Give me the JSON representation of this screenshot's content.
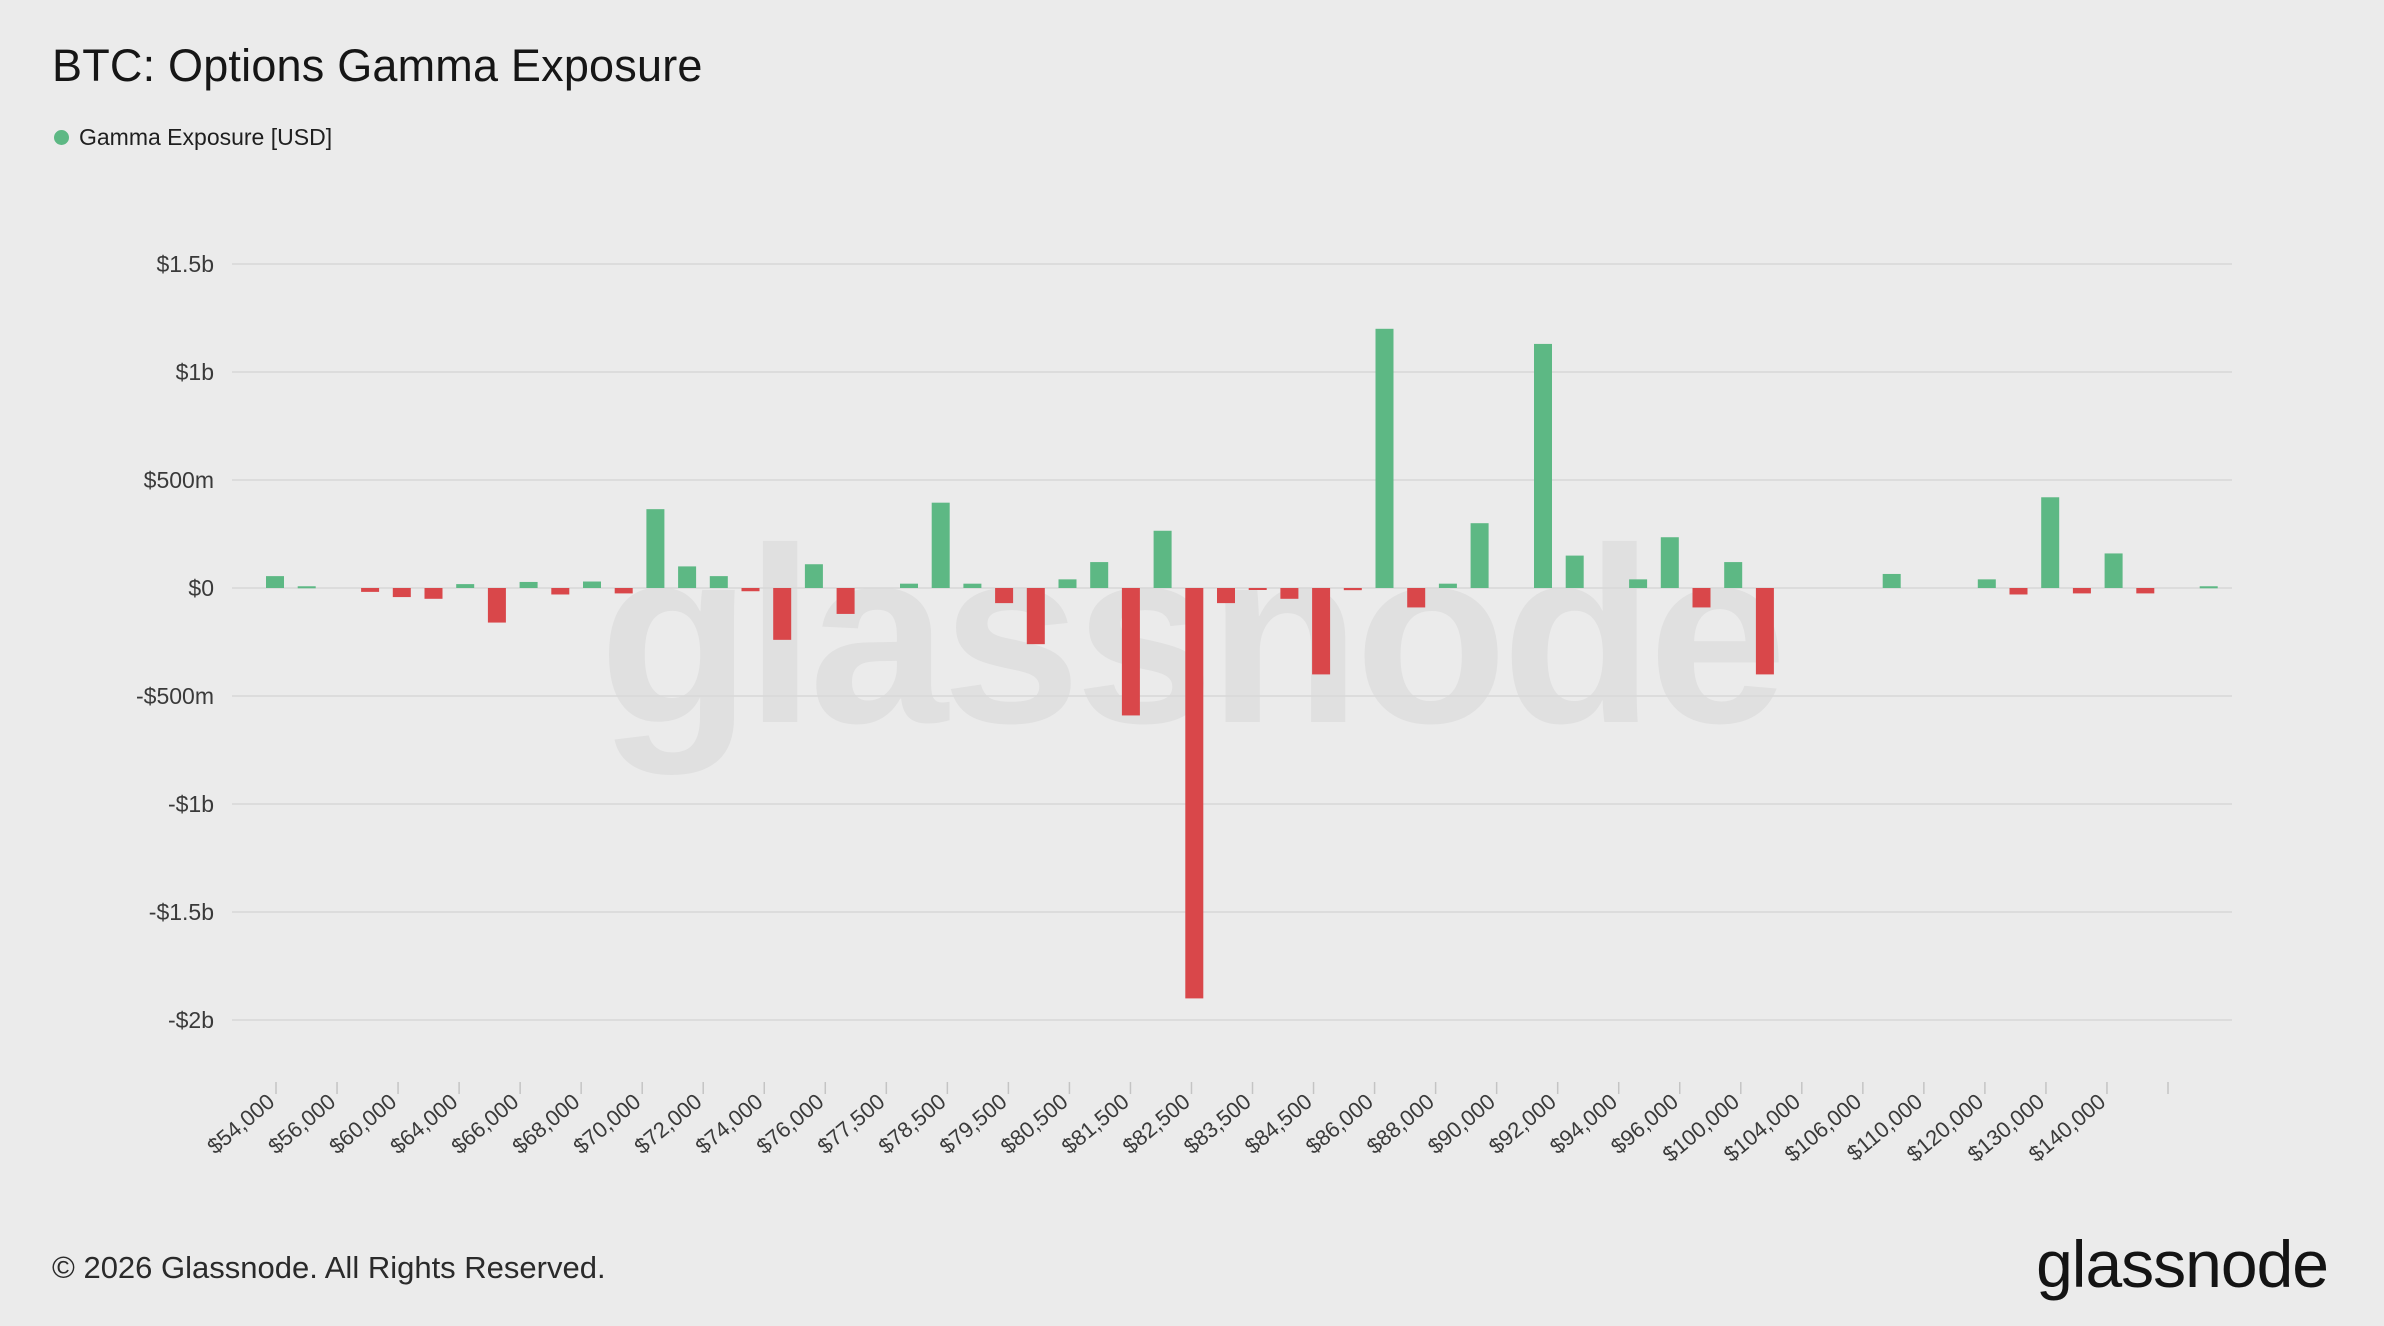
{
  "header": {
    "title": "BTC: Options Gamma Exposure",
    "legend_label": "Gamma Exposure [USD]"
  },
  "footer": {
    "copyright": "© 2026 Glassnode. All Rights Reserved.",
    "brand": "glassnode"
  },
  "watermark": "glassnode",
  "colors": {
    "background": "#ebebeb",
    "positive": "#5db884",
    "negative": "#d9474a",
    "grid": "#d8d8d8"
  },
  "chart_data": {
    "type": "bar",
    "title": "BTC: Options Gamma Exposure",
    "xlabel": "",
    "ylabel": "",
    "ylim": [
      -2000000000,
      1500000000
    ],
    "yticks": [
      {
        "value": 1500000000,
        "label": "$1.5b"
      },
      {
        "value": 1000000000,
        "label": "$1b"
      },
      {
        "value": 500000000,
        "label": "$500m"
      },
      {
        "value": 0,
        "label": "$0"
      },
      {
        "value": -500000000,
        "label": "-$500m"
      },
      {
        "value": -1000000000,
        "label": "-$1b"
      },
      {
        "value": -1500000000,
        "label": "-$1.5b"
      },
      {
        "value": -2000000000,
        "label": "-$2b"
      }
    ],
    "grid": true,
    "legend_position": "top-left",
    "xtick_labels": [
      "$54,000",
      "$56,000",
      "$60,000",
      "$64,000",
      "$66,000",
      "$68,000",
      "$70,000",
      "$72,000",
      "$74,000",
      "$76,000",
      "$77,500",
      "$78,500",
      "$79,500",
      "$80,500",
      "$81,500",
      "$82,500",
      "$83,500",
      "$84,500",
      "$86,000",
      "$88,000",
      "$90,000",
      "$92,000",
      "$94,000",
      "$96,000",
      "$100,000",
      "$104,000",
      "$106,000",
      "$110,000",
      "$120,000",
      "$130,000",
      "$140,000"
    ],
    "series": [
      {
        "name": "Gamma Exposure [USD]",
        "values": [
          55000000,
          8000000,
          0,
          -18000000,
          -42000000,
          -50000000,
          18000000,
          -160000000,
          28000000,
          -30000000,
          30000000,
          -25000000,
          365000000,
          100000000,
          55000000,
          -15000000,
          -240000000,
          110000000,
          -120000000,
          0,
          20000000,
          395000000,
          20000000,
          -70000000,
          -260000000,
          40000000,
          120000000,
          -590000000,
          265000000,
          -1900000000,
          -70000000,
          -8000000,
          -50000000,
          -400000000,
          -10000000,
          1200000000,
          -90000000,
          20000000,
          300000000,
          0,
          1130000000,
          150000000,
          0,
          40000000,
          235000000,
          -90000000,
          120000000,
          -400000000,
          0,
          0,
          0,
          65000000,
          0,
          0,
          40000000,
          -30000000,
          420000000,
          -25000000,
          160000000,
          -25000000,
          0,
          8000000
        ]
      }
    ]
  }
}
